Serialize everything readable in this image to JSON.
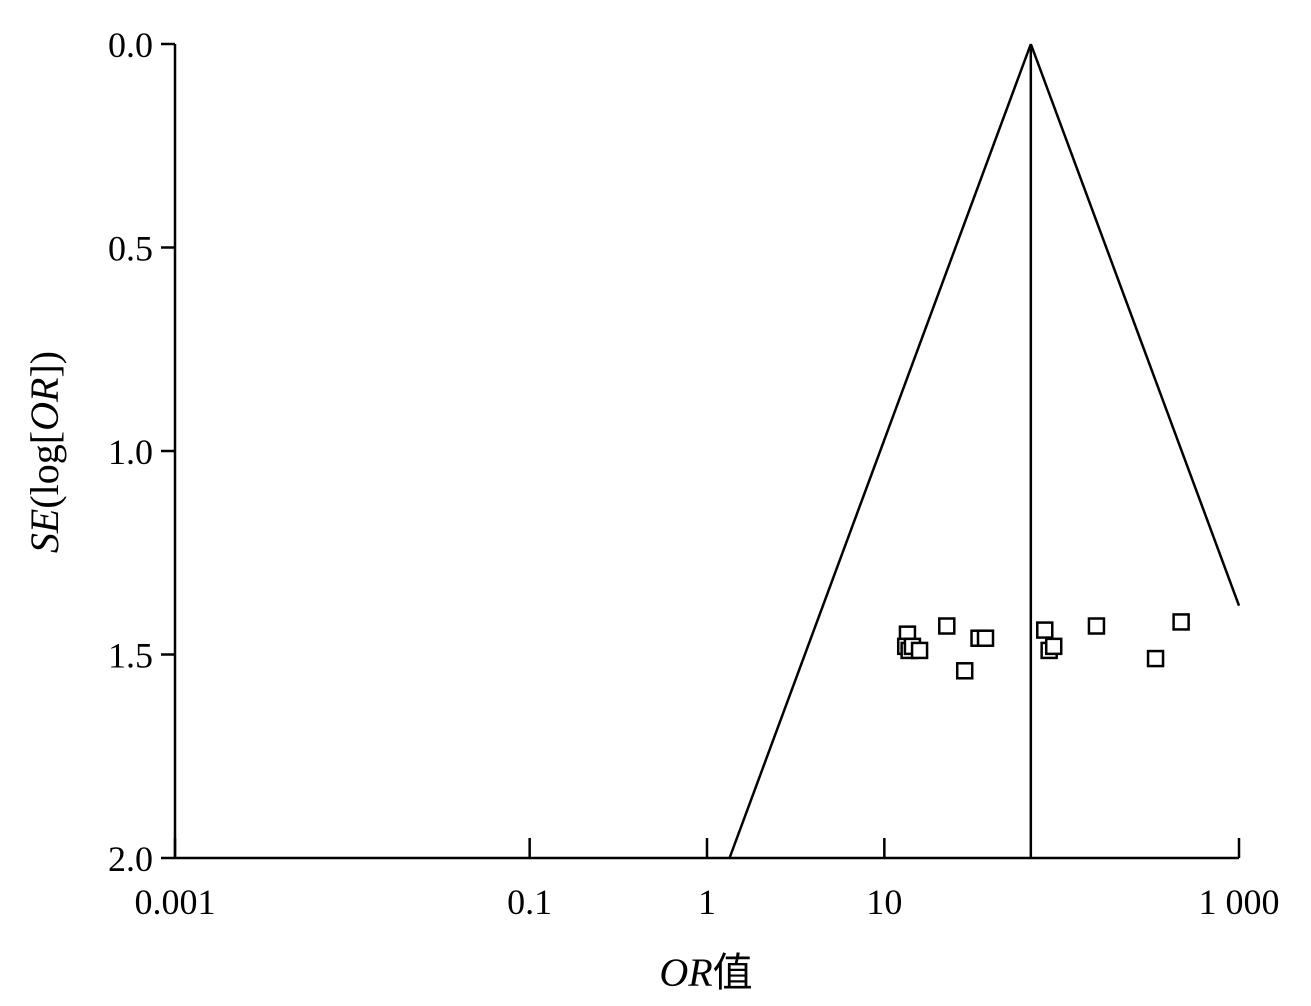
{
  "chart_data": {
    "type": "scatter",
    "title": "",
    "xlabel": {
      "italic": "OR",
      "normal": "值"
    },
    "ylabel": {
      "p1": "SE",
      "p2": "(log[",
      "p3": "OR",
      "p4": "])"
    },
    "x_scale": "log",
    "xlim": [
      0.001,
      1000
    ],
    "ylim": [
      0,
      2
    ],
    "y_reversed": true,
    "x_ticks": [
      {
        "value": 0.001,
        "label": "0.001"
      },
      {
        "value": 0.1,
        "label": "0.1"
      },
      {
        "value": 1,
        "label": "1"
      },
      {
        "value": 10,
        "label": "10"
      },
      {
        "value": 1000,
        "label": "1 000"
      }
    ],
    "y_ticks": [
      {
        "value": 0.0,
        "label": "0.0"
      },
      {
        "value": 0.5,
        "label": "0.5"
      },
      {
        "value": 1.0,
        "label": "1.0"
      },
      {
        "value": 1.5,
        "label": "1.5"
      },
      {
        "value": 2.0,
        "label": "2.0"
      }
    ],
    "pooled_or": 67,
    "funnel": {
      "apex": [
        67,
        0
      ],
      "left_end": [
        1.34,
        2.0
      ],
      "right_end": [
        1000,
        1.38
      ]
    },
    "points": [
      {
        "or": 13.5,
        "se": 1.45
      },
      {
        "or": 13.2,
        "se": 1.48
      },
      {
        "or": 13.8,
        "se": 1.49
      },
      {
        "or": 14.4,
        "se": 1.48
      },
      {
        "or": 15.8,
        "se": 1.49
      },
      {
        "or": 22.5,
        "se": 1.43
      },
      {
        "or": 28.4,
        "se": 1.54
      },
      {
        "or": 34.2,
        "se": 1.46
      },
      {
        "or": 37.2,
        "se": 1.46
      },
      {
        "or": 80.3,
        "se": 1.44
      },
      {
        "or": 85.0,
        "se": 1.49
      },
      {
        "or": 90.2,
        "se": 1.48
      },
      {
        "or": 157.1,
        "se": 1.43
      },
      {
        "or": 338.4,
        "se": 1.51
      },
      {
        "or": 471.6,
        "se": 1.42
      }
    ]
  }
}
